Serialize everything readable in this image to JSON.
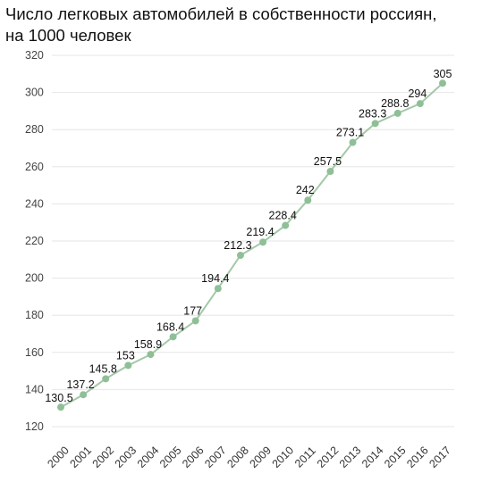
{
  "chart_data": {
    "type": "line",
    "title_lines": [
      "Число легковых автомобилей в собственности россиян,",
      "на 1000 человек"
    ],
    "x": [
      "2000",
      "2001",
      "2002",
      "2003",
      "2004",
      "2005",
      "2006",
      "2007",
      "2008",
      "2009",
      "2010",
      "2011",
      "2012",
      "2013",
      "2014",
      "2015",
      "2016",
      "2017"
    ],
    "values": [
      130.5,
      137.2,
      145.8,
      153,
      158.9,
      168.4,
      177,
      194.4,
      212.3,
      219.4,
      228.4,
      242,
      257.5,
      273.1,
      283.3,
      288.8,
      294,
      305
    ],
    "value_labels": [
      "130.5",
      "137.2",
      "145.8",
      "153",
      "158.9",
      "168.4",
      "177",
      "194.4",
      "212.3",
      "219.4",
      "228.4",
      "242",
      "257.5",
      "273.1",
      "283.3",
      "288.8",
      "294",
      "305"
    ],
    "ylim": [
      120,
      320
    ],
    "yticks": [
      120,
      140,
      160,
      180,
      200,
      220,
      240,
      260,
      280,
      300,
      320
    ],
    "grid": true,
    "line_color": "#a3c8a8",
    "marker_color": "#8fbf97"
  }
}
